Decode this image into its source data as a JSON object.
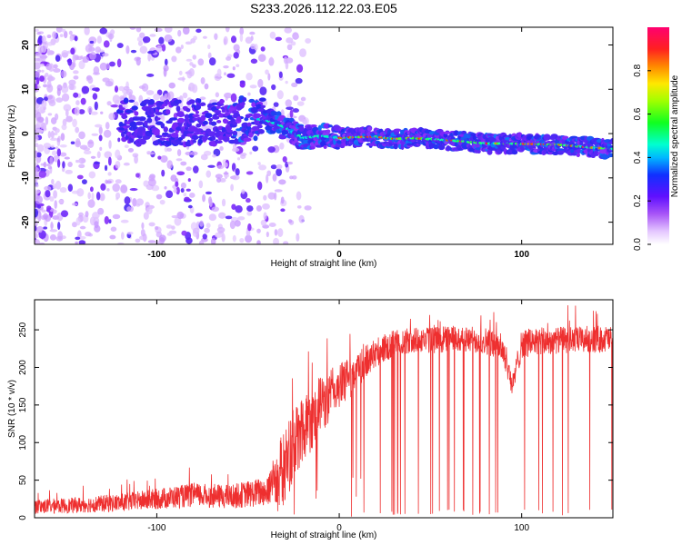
{
  "title": "S233.2026.112.22.03.E05",
  "chart_data": [
    {
      "type": "heatmap",
      "xlabel": "Height of straight line (km)",
      "ylabel": "Frequency (Hz)",
      "xlim": [
        -167,
        150
      ],
      "ylim": [
        -25,
        24
      ],
      "x_ticks": [
        {
          "v": -100,
          "label": "-100"
        },
        {
          "v": 0,
          "label": "0"
        },
        {
          "v": 100,
          "label": "100"
        }
      ],
      "y_ticks": [
        {
          "v": 20,
          "label": "20"
        },
        {
          "v": 10,
          "label": "10"
        },
        {
          "v": 0,
          "label": "0"
        },
        {
          "v": -10,
          "label": "-10"
        },
        {
          "v": -20,
          "label": "-20"
        }
      ],
      "colorbar": {
        "label": "Normalized spectral amplitude",
        "range": [
          0,
          1
        ],
        "ticks": [
          {
            "v": 0.0,
            "label": "0.0"
          },
          {
            "v": 0.2,
            "label": "0.2"
          },
          {
            "v": 0.4,
            "label": "0.4"
          },
          {
            "v": 0.6,
            "label": "0.6"
          },
          {
            "v": 0.8,
            "label": "0.8"
          }
        ]
      },
      "ridge": {
        "x": [
          -60,
          -50,
          -40,
          -30,
          -20,
          -10,
          0,
          10,
          20,
          30,
          40,
          60,
          80,
          100,
          120,
          140,
          150
        ],
        "freq_hz": [
          2.5,
          3.5,
          3.0,
          1.5,
          -1.0,
          -0.5,
          -1.0,
          -0.8,
          -0.7,
          -1.2,
          -1.0,
          -1.5,
          -2.2,
          -2.3,
          -2.5,
          -3.2,
          -3.5
        ]
      }
    },
    {
      "type": "line",
      "xlabel": "Height of straight line (km)",
      "ylabel": "SNR (10 * v/v)",
      "xlim": [
        -167,
        150
      ],
      "ylim": [
        0,
        290
      ],
      "x_ticks": [
        {
          "v": -100,
          "label": "-100"
        },
        {
          "v": 0,
          "label": "0"
        },
        {
          "v": 100,
          "label": "100"
        }
      ],
      "y_ticks": [
        {
          "v": 0,
          "label": "0"
        },
        {
          "v": 50,
          "label": "50"
        },
        {
          "v": 100,
          "label": "100"
        },
        {
          "v": 150,
          "label": "150"
        },
        {
          "v": 200,
          "label": "200"
        },
        {
          "v": 250,
          "label": "250"
        }
      ],
      "series_color": "#ee2f2f",
      "envelope": {
        "x": [
          -167,
          -150,
          -120,
          -100,
          -80,
          -60,
          -40,
          -30,
          -20,
          -10,
          0,
          10,
          20,
          30,
          40,
          60,
          80,
          90,
          95,
          100,
          120,
          150
        ],
        "level": [
          15,
          16,
          20,
          25,
          30,
          28,
          35,
          70,
          120,
          150,
          175,
          195,
          220,
          232,
          235,
          238,
          236,
          225,
          175,
          232,
          236,
          238
        ],
        "spread": [
          10,
          10,
          12,
          14,
          16,
          16,
          20,
          50,
          50,
          40,
          30,
          25,
          20,
          18,
          18,
          18,
          18,
          20,
          15,
          20,
          18,
          18
        ]
      }
    }
  ]
}
